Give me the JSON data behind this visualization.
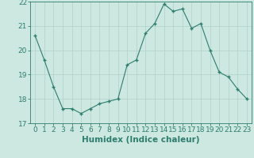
{
  "x": [
    0,
    1,
    2,
    3,
    4,
    5,
    6,
    7,
    8,
    9,
    10,
    11,
    12,
    13,
    14,
    15,
    16,
    17,
    18,
    19,
    20,
    21,
    22,
    23
  ],
  "y": [
    20.6,
    19.6,
    18.5,
    17.6,
    17.6,
    17.4,
    17.6,
    17.8,
    17.9,
    18.0,
    19.4,
    19.6,
    20.7,
    21.1,
    21.9,
    21.6,
    21.7,
    20.9,
    21.1,
    20.0,
    19.1,
    18.9,
    18.4,
    18.0
  ],
  "line_color": "#2e7d6e",
  "marker_color": "#2e7d6e",
  "bg_color": "#cce8e0",
  "grid_color": "#b0d0c8",
  "xlabel": "Humidex (Indice chaleur)",
  "ylim": [
    17,
    22
  ],
  "xlim": [
    -0.5,
    23.5
  ],
  "yticks": [
    17,
    18,
    19,
    20,
    21,
    22
  ],
  "xticks": [
    0,
    1,
    2,
    3,
    4,
    5,
    6,
    7,
    8,
    9,
    10,
    11,
    12,
    13,
    14,
    15,
    16,
    17,
    18,
    19,
    20,
    21,
    22,
    23
  ],
  "tick_color": "#2e7d6e",
  "label_color": "#2e7d6e",
  "font_size_xlabel": 7.5,
  "font_size_tick": 6.5
}
